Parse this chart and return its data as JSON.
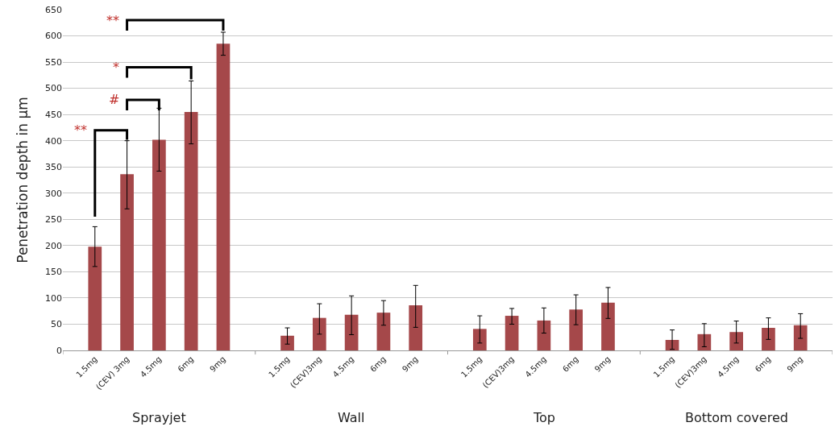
{
  "chart_data": {
    "type": "bar",
    "ylabel": "Penetration depth in µm",
    "categories": [
      null,
      "1.5mg",
      "(CEV) 3mg",
      "4.5mg",
      "6mg",
      "9mg",
      null,
      "1.5mg",
      "(CEV)3mg",
      "4.5mg",
      "6mg",
      "9mg",
      null,
      "1.5mg",
      "(CEV)3mg",
      "4.5mg",
      "6mg",
      "9mg",
      null,
      "1.5mg",
      "(CEV)3mg",
      "4.5mg",
      "6mg",
      "9mg"
    ],
    "values": [
      null,
      198,
      336,
      402,
      455,
      585,
      null,
      28,
      62,
      68,
      72,
      86,
      null,
      41,
      66,
      57,
      78,
      91,
      null,
      20,
      31,
      35,
      43,
      48
    ],
    "errors": [
      null,
      [
        160,
        236
      ],
      [
        270,
        400
      ],
      [
        342,
        462
      ],
      [
        394,
        514
      ],
      [
        563,
        607
      ],
      null,
      [
        12,
        43
      ],
      [
        31,
        89
      ],
      [
        30,
        104
      ],
      [
        48,
        95
      ],
      [
        44,
        124
      ],
      null,
      [
        14,
        66
      ],
      [
        50,
        80
      ],
      [
        33,
        81
      ],
      [
        49,
        106
      ],
      [
        61,
        120
      ],
      null,
      [
        2,
        39
      ],
      [
        7,
        51
      ],
      [
        14,
        56
      ],
      [
        21,
        62
      ],
      [
        23,
        70
      ]
    ],
    "color": "#a5484a",
    "ylim": [
      0,
      650
    ],
    "yticks": [
      0,
      50,
      100,
      150,
      200,
      250,
      300,
      350,
      400,
      450,
      500,
      550,
      600,
      650
    ],
    "grid": "y",
    "annotations": [
      "Sprayjet",
      "Wall",
      "Top",
      "Bottom covered",
      "**",
      "#",
      {
        "text": "*",
        "x": "6mg",
        "y": 514
      },
      {
        "text": "**",
        "x": "9mg",
        "y": 607
      }
    ]
  }
}
